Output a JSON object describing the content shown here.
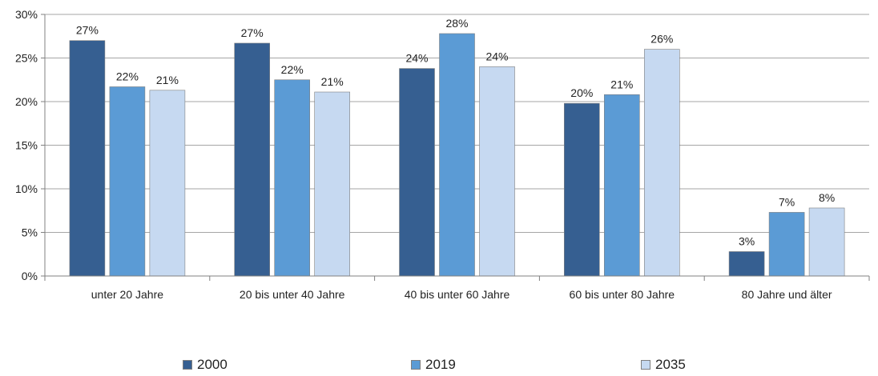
{
  "chart_data": {
    "type": "bar",
    "categories": [
      "unter 20 Jahre",
      "20 bis unter 40 Jahre",
      "40 bis unter 60 Jahre",
      "60 bis unter 80 Jahre",
      "80 Jahre und älter"
    ],
    "series": [
      {
        "name": "2000",
        "color": "#365f91",
        "values": [
          27,
          26.7,
          23.8,
          19.8,
          2.8
        ],
        "labels": [
          "27%",
          "27%",
          "24%",
          "20%",
          "3%"
        ]
      },
      {
        "name": "2019",
        "color": "#5b9bd5",
        "values": [
          21.7,
          22.5,
          27.8,
          20.8,
          7.3
        ],
        "labels": [
          "22%",
          "22%",
          "28%",
          "21%",
          "7%"
        ]
      },
      {
        "name": "2035",
        "color": "#c6d9f1",
        "values": [
          21.3,
          21.1,
          24,
          26,
          7.8
        ],
        "labels": [
          "21%",
          "21%",
          "24%",
          "26%",
          "8%"
        ]
      }
    ],
    "ylim": [
      0,
      30
    ],
    "yticks": [
      0,
      5,
      10,
      15,
      20,
      25,
      30
    ],
    "ytick_labels": [
      "0%",
      "5%",
      "10%",
      "15%",
      "20%",
      "25%",
      "30%"
    ],
    "grid": true,
    "legend_position": "bottom",
    "xlabel": "",
    "ylabel": ""
  }
}
